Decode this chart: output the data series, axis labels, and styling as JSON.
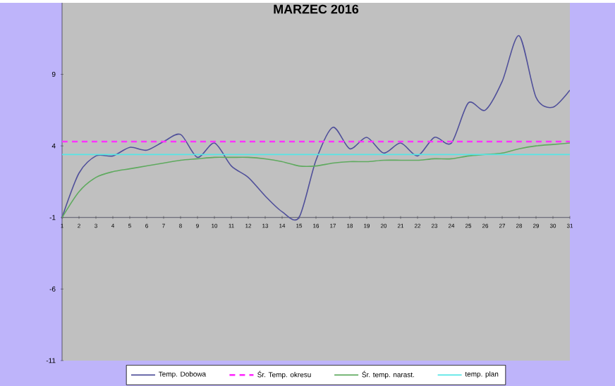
{
  "chart_data": {
    "type": "line",
    "title": "MARZEC 2016",
    "x": [
      1,
      2,
      3,
      4,
      5,
      6,
      7,
      8,
      9,
      10,
      11,
      12,
      13,
      14,
      15,
      16,
      17,
      18,
      19,
      20,
      21,
      22,
      23,
      24,
      25,
      26,
      27,
      28,
      29,
      30,
      31
    ],
    "xlim": [
      1,
      31
    ],
    "xticks": [
      1,
      2,
      3,
      4,
      5,
      6,
      7,
      8,
      9,
      10,
      11,
      12,
      13,
      14,
      15,
      16,
      17,
      18,
      19,
      20,
      21,
      22,
      23,
      24,
      25,
      26,
      27,
      28,
      29,
      30,
      31
    ],
    "ylim": [
      -11,
      14
    ],
    "yticks": [
      -11,
      -6,
      -1,
      4,
      9
    ],
    "legend": "bottom",
    "grid": false,
    "marker": "none",
    "series": [
      {
        "name": "Temp. Dobowa",
        "color": "#50509a",
        "line_style": "solid",
        "values": [
          -1,
          2.1,
          3.3,
          3.3,
          3.9,
          3.7,
          4.3,
          4.8,
          3.2,
          4.2,
          2.6,
          1.8,
          0.5,
          -0.6,
          -1,
          3.0,
          5.3,
          3.8,
          4.6,
          3.5,
          4.2,
          3.3,
          4.6,
          4.2,
          7.0,
          6.5,
          8.5,
          11.7,
          7.4,
          6.7,
          7.9
        ]
      },
      {
        "name": "Śr. Temp. okresu",
        "color": "#ff33ff",
        "line_style": "dashed",
        "values": [
          4.3,
          4.3,
          4.3,
          4.3,
          4.3,
          4.3,
          4.3,
          4.3,
          4.3,
          4.3,
          4.3,
          4.3,
          4.3,
          4.3,
          4.3,
          4.3,
          4.3,
          4.3,
          4.3,
          4.3,
          4.3,
          4.3,
          4.3,
          4.3,
          4.3,
          4.3,
          4.3,
          4.3,
          4.3,
          4.3,
          4.3
        ]
      },
      {
        "name": "Śr. temp. narast.",
        "color": "#5faa5f",
        "line_style": "solid",
        "values": [
          -1,
          0.8,
          1.8,
          2.2,
          2.4,
          2.6,
          2.8,
          3.0,
          3.1,
          3.2,
          3.2,
          3.2,
          3.1,
          2.9,
          2.6,
          2.6,
          2.8,
          2.9,
          2.9,
          3.0,
          3.0,
          3.0,
          3.1,
          3.1,
          3.3,
          3.4,
          3.5,
          3.8,
          4.0,
          4.1,
          4.2
        ]
      },
      {
        "name": "temp. plan",
        "color": "#55e5e5",
        "line_style": "solid",
        "values": [
          3.4,
          3.4,
          3.4,
          3.4,
          3.4,
          3.4,
          3.4,
          3.4,
          3.4,
          3.4,
          3.4,
          3.4,
          3.4,
          3.4,
          3.4,
          3.4,
          3.4,
          3.4,
          3.4,
          3.4,
          3.4,
          3.4,
          3.4,
          3.4,
          3.4,
          3.4,
          3.4,
          3.4,
          3.4,
          3.4,
          3.4
        ]
      }
    ]
  }
}
